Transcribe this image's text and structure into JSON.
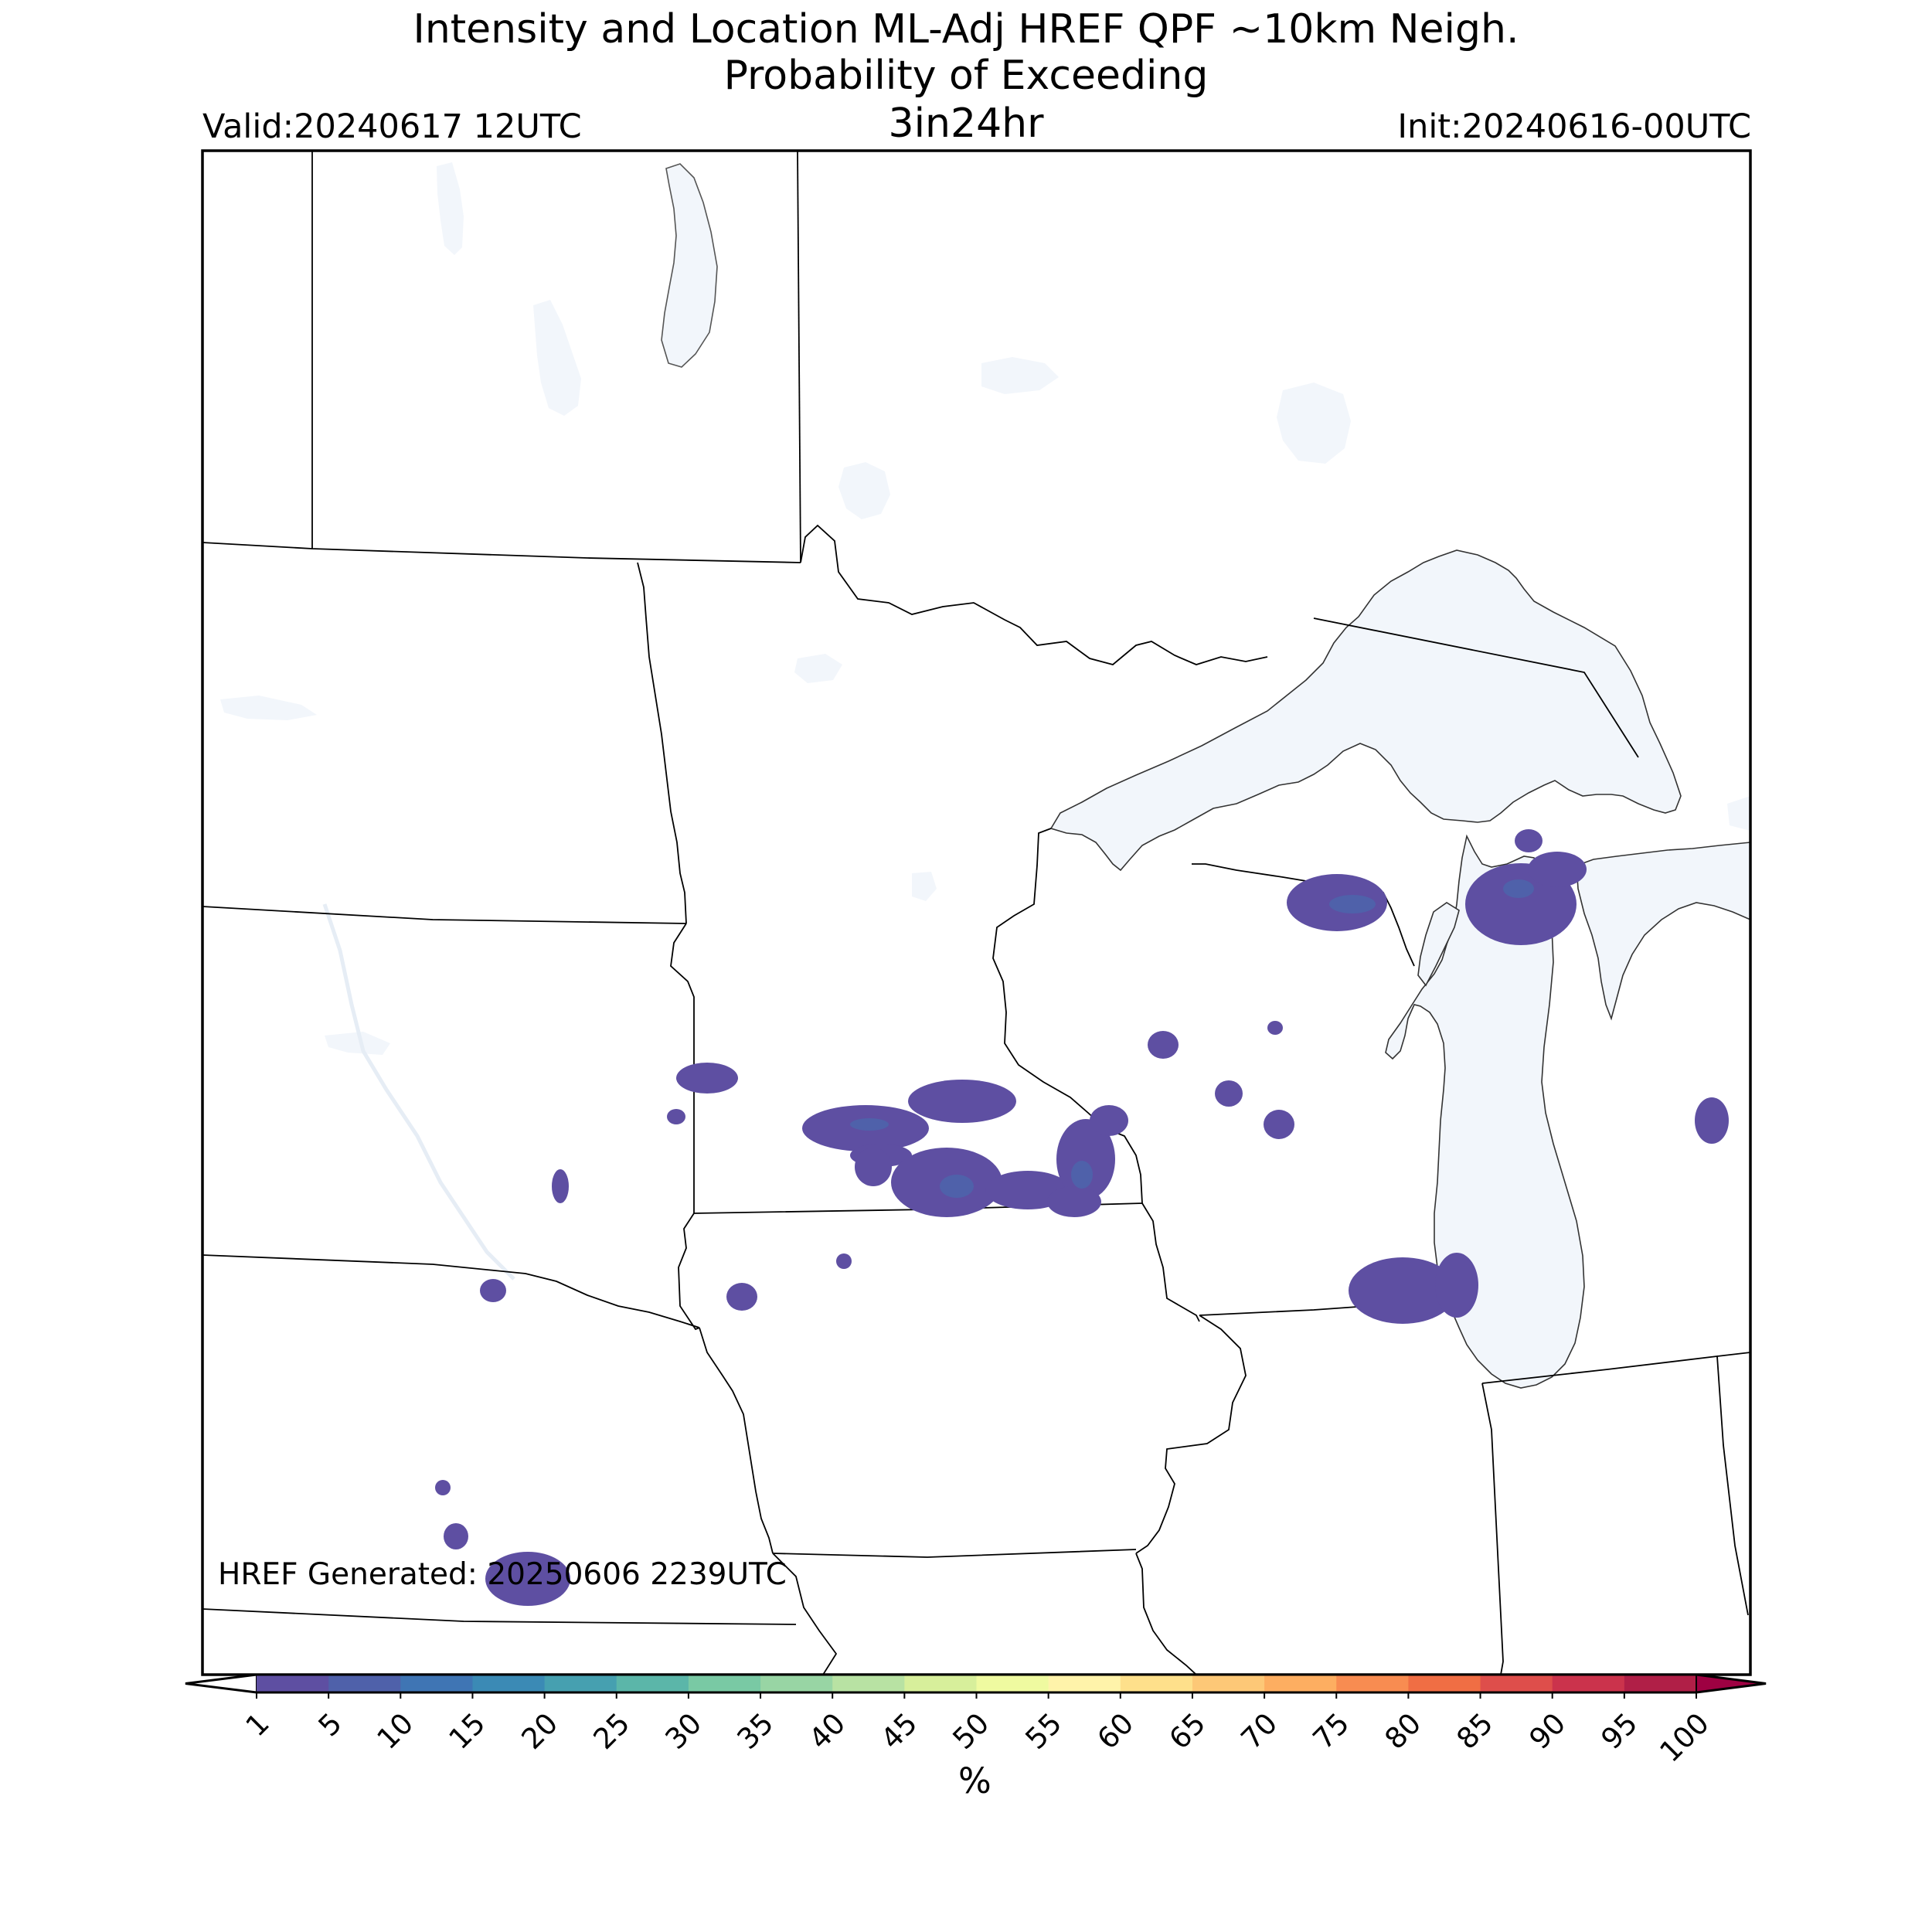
{
  "header": {
    "title_line1": "Intensity and Location ML-Adj HREF QPF ~10km Neigh.",
    "title_line2": "Probability of Exceeding",
    "threshold": "3in24hr",
    "valid": "Valid:20240617 12UTC",
    "init": "Init:20240616-00UTC"
  },
  "map": {
    "land_color": "#ffffff",
    "water_color": "#f2f6fb",
    "border_color": "#000000"
  },
  "footer": {
    "credit": "HREF Generated: 20250606 2239UTC"
  },
  "colorbar": {
    "unit": "%",
    "ticks": [
      "1",
      "5",
      "10",
      "15",
      "20",
      "25",
      "30",
      "35",
      "40",
      "45",
      "50",
      "55",
      "60",
      "65",
      "70",
      "75",
      "80",
      "85",
      "90",
      "95",
      "100"
    ],
    "colors": [
      "#5e4fa2",
      "#4f61aa",
      "#3f75b4",
      "#3b8ab5",
      "#46a0b0",
      "#5bb6a9",
      "#79c9a4",
      "#98d5a4",
      "#b8e2a3",
      "#d7ef9b",
      "#effaa0",
      "#fff3aa",
      "#fee08b",
      "#fdc877",
      "#fdae61",
      "#f88c51",
      "#f06e44",
      "#de4e4b",
      "#cb334c",
      "#b01f47"
    ],
    "under_color": "#ffffff",
    "over_color": "#9e0142"
  }
}
